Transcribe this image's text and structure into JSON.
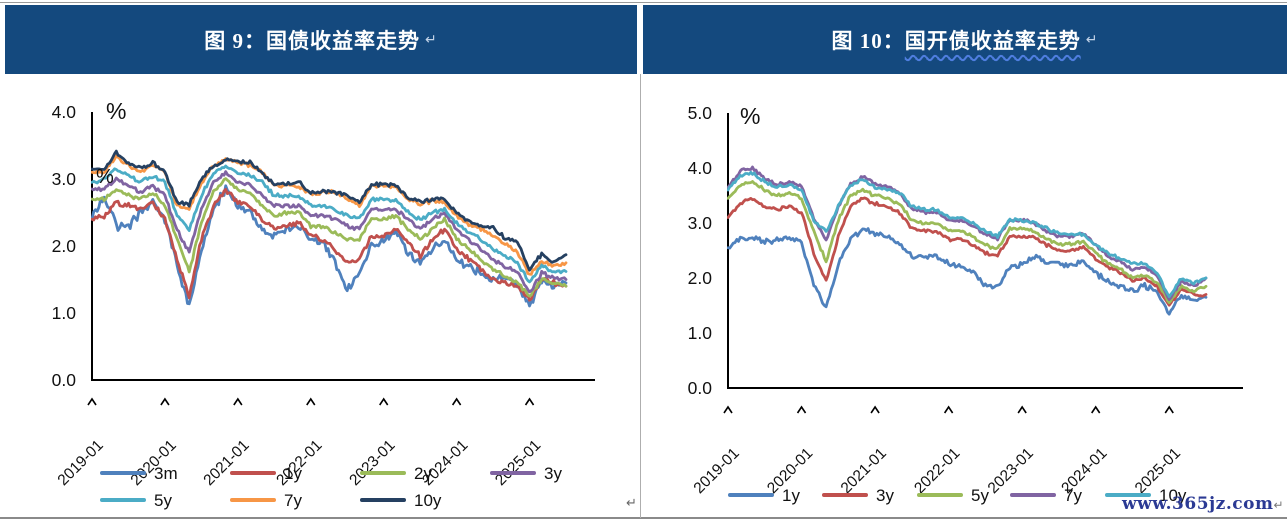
{
  "page": {
    "watermark": "www.365jz.com",
    "paragraph_mark": "↵"
  },
  "panels": [
    {
      "title_prefix": "图 9：",
      "title_main": "国债收益率走势",
      "percent_top": "%",
      "percent_inner": "%",
      "y_ticks": [
        "4.0",
        "3.0",
        "2.0",
        "1.0",
        "0.0"
      ],
      "x_ticks": [
        "2019-01",
        "2020-01",
        "2021-01",
        "2022-01",
        "2023-01",
        "2024-01",
        "2025-01"
      ]
    },
    {
      "title_prefix": "图 10：",
      "title_main": "国开债收益率走势",
      "percent_top": "%",
      "y_ticks": [
        "5.0",
        "4.0",
        "3.0",
        "2.0",
        "1.0",
        "0.0"
      ],
      "x_ticks": [
        "2019-01",
        "2020-01",
        "2021-01",
        "2022-01",
        "2023-01",
        "2024-01",
        "2025-01"
      ]
    }
  ],
  "chart_data": [
    {
      "type": "line",
      "title": "国债收益率走势",
      "ylabel": "%",
      "ylim": [
        0.0,
        4.0
      ],
      "x_start": "2019-01",
      "x_step_months": 2,
      "x_end": "2025-07",
      "x_tick_labels": [
        "2019-01",
        "2020-01",
        "2021-01",
        "2022-01",
        "2023-01",
        "2024-01",
        "2025-01"
      ],
      "legend_position": "bottom",
      "grid": false,
      "series": [
        {
          "name": "3m",
          "color": "#4F81BD",
          "values": [
            2.4,
            2.75,
            2.3,
            2.3,
            2.5,
            2.65,
            2.4,
            1.7,
            1.1,
            1.95,
            2.55,
            2.85,
            2.6,
            2.5,
            2.25,
            2.15,
            2.25,
            2.3,
            2.1,
            2.05,
            1.75,
            1.35,
            1.6,
            2.0,
            2.1,
            2.2,
            1.9,
            1.75,
            1.95,
            2.1,
            1.8,
            1.7,
            1.6,
            1.5,
            1.55,
            1.45,
            1.1,
            1.5,
            1.4,
            1.45
          ]
        },
        {
          "name": "1y",
          "color": "#C0504D",
          "values": [
            2.4,
            2.45,
            2.65,
            2.6,
            2.55,
            2.65,
            2.4,
            1.8,
            1.25,
            2.1,
            2.6,
            2.85,
            2.65,
            2.6,
            2.4,
            2.25,
            2.3,
            2.35,
            2.15,
            2.1,
            1.95,
            1.75,
            1.8,
            2.15,
            2.15,
            2.25,
            2.05,
            1.85,
            2.1,
            2.25,
            1.95,
            1.8,
            1.65,
            1.5,
            1.45,
            1.4,
            1.2,
            1.5,
            1.45,
            1.4
          ]
        },
        {
          "name": "2y",
          "color": "#9BBB59",
          "values": [
            2.7,
            2.7,
            2.85,
            2.75,
            2.7,
            2.8,
            2.6,
            2.1,
            1.6,
            2.35,
            2.8,
            3.0,
            2.85,
            2.8,
            2.6,
            2.45,
            2.5,
            2.5,
            2.3,
            2.3,
            2.2,
            2.1,
            2.1,
            2.4,
            2.4,
            2.45,
            2.25,
            2.1,
            2.25,
            2.4,
            2.1,
            1.95,
            1.8,
            1.65,
            1.55,
            1.45,
            1.25,
            1.5,
            1.45,
            1.4
          ]
        },
        {
          "name": "3y",
          "color": "#8064A2",
          "values": [
            2.85,
            2.85,
            3.0,
            2.9,
            2.8,
            2.9,
            2.75,
            2.25,
            1.9,
            2.55,
            2.95,
            3.1,
            2.95,
            2.9,
            2.75,
            2.6,
            2.6,
            2.6,
            2.45,
            2.45,
            2.4,
            2.3,
            2.25,
            2.55,
            2.55,
            2.55,
            2.4,
            2.25,
            2.4,
            2.5,
            2.25,
            2.1,
            1.95,
            1.8,
            1.7,
            1.6,
            1.3,
            1.6,
            1.52,
            1.5
          ]
        },
        {
          "name": "5y",
          "color": "#4BACC6",
          "values": [
            2.95,
            3.0,
            3.15,
            3.05,
            2.95,
            3.05,
            2.95,
            2.45,
            2.25,
            2.75,
            3.1,
            3.2,
            3.1,
            3.05,
            2.95,
            2.75,
            2.75,
            2.75,
            2.6,
            2.6,
            2.55,
            2.45,
            2.4,
            2.7,
            2.7,
            2.68,
            2.5,
            2.4,
            2.5,
            2.55,
            2.35,
            2.2,
            2.1,
            1.95,
            1.85,
            1.75,
            1.45,
            1.7,
            1.62,
            1.62
          ]
        },
        {
          "name": "7y",
          "color": "#F79646",
          "values": [
            3.1,
            3.1,
            3.35,
            3.2,
            3.1,
            3.2,
            3.1,
            2.6,
            2.55,
            2.95,
            3.2,
            3.3,
            3.25,
            3.2,
            3.1,
            2.9,
            2.9,
            2.9,
            2.78,
            2.8,
            2.8,
            2.7,
            2.6,
            2.9,
            2.9,
            2.88,
            2.7,
            2.62,
            2.67,
            2.65,
            2.45,
            2.32,
            2.26,
            2.16,
            2.02,
            1.92,
            1.55,
            1.78,
            1.7,
            1.75
          ]
        },
        {
          "name": "10y",
          "color": "#254061",
          "values": [
            3.15,
            3.15,
            3.4,
            3.22,
            3.15,
            3.25,
            3.1,
            2.65,
            2.62,
            3.0,
            3.2,
            3.3,
            3.25,
            3.25,
            3.1,
            2.92,
            2.92,
            2.95,
            2.8,
            2.82,
            2.8,
            2.75,
            2.65,
            2.92,
            2.92,
            2.9,
            2.72,
            2.66,
            2.7,
            2.7,
            2.5,
            2.36,
            2.3,
            2.26,
            2.12,
            2.05,
            1.65,
            1.88,
            1.75,
            1.87
          ]
        }
      ]
    },
    {
      "type": "line",
      "title": "国开债收益率走势",
      "ylabel": "%",
      "ylim": [
        0.0,
        5.0
      ],
      "x_start": "2019-01",
      "x_step_months": 2,
      "x_end": "2025-07",
      "x_tick_labels": [
        "2019-01",
        "2020-01",
        "2021-01",
        "2022-01",
        "2023-01",
        "2024-01",
        "2025-01"
      ],
      "legend_position": "bottom",
      "grid": false,
      "series": [
        {
          "name": "1y",
          "color": "#4F81BD",
          "values": [
            2.55,
            2.7,
            2.75,
            2.65,
            2.7,
            2.75,
            2.65,
            1.9,
            1.45,
            2.25,
            2.7,
            2.9,
            2.8,
            2.75,
            2.62,
            2.4,
            2.38,
            2.42,
            2.25,
            2.22,
            2.1,
            1.85,
            1.85,
            2.2,
            2.25,
            2.4,
            2.3,
            2.25,
            2.22,
            2.3,
            2.1,
            1.92,
            1.85,
            1.75,
            1.85,
            1.75,
            1.35,
            1.7,
            1.6,
            1.65
          ]
        },
        {
          "name": "3y",
          "color": "#C0504D",
          "values": [
            3.1,
            3.35,
            3.45,
            3.3,
            3.25,
            3.3,
            3.2,
            2.45,
            1.95,
            2.75,
            3.3,
            3.45,
            3.35,
            3.3,
            3.18,
            2.9,
            2.86,
            2.86,
            2.7,
            2.7,
            2.6,
            2.45,
            2.4,
            2.75,
            2.75,
            2.75,
            2.6,
            2.5,
            2.5,
            2.55,
            2.35,
            2.2,
            2.1,
            1.95,
            2.0,
            1.85,
            1.5,
            1.8,
            1.7,
            1.7
          ]
        },
        {
          "name": "5y",
          "color": "#9BBB59",
          "values": [
            3.45,
            3.7,
            3.75,
            3.6,
            3.5,
            3.55,
            3.45,
            2.85,
            2.3,
            3.05,
            3.5,
            3.6,
            3.5,
            3.45,
            3.35,
            3.05,
            3.0,
            3.0,
            2.85,
            2.85,
            2.75,
            2.6,
            2.52,
            2.9,
            2.9,
            2.85,
            2.7,
            2.62,
            2.62,
            2.65,
            2.45,
            2.26,
            2.16,
            2.0,
            2.06,
            1.92,
            1.55,
            1.85,
            1.76,
            1.85
          ]
        },
        {
          "name": "7y",
          "color": "#8064A2",
          "values": [
            3.65,
            3.95,
            4.0,
            3.8,
            3.7,
            3.75,
            3.65,
            3.1,
            2.7,
            3.3,
            3.7,
            3.85,
            3.7,
            3.65,
            3.55,
            3.25,
            3.2,
            3.2,
            3.05,
            3.05,
            2.95,
            2.8,
            2.72,
            3.05,
            3.05,
            3.0,
            2.85,
            2.76,
            2.76,
            2.8,
            2.6,
            2.4,
            2.3,
            2.15,
            2.2,
            2.05,
            1.6,
            1.95,
            1.85,
            2.0
          ]
        },
        {
          "name": "10y",
          "color": "#4BACC6",
          "values": [
            3.6,
            3.85,
            3.9,
            3.75,
            3.65,
            3.7,
            3.6,
            3.05,
            2.85,
            3.3,
            3.7,
            3.8,
            3.65,
            3.6,
            3.55,
            3.3,
            3.25,
            3.25,
            3.1,
            3.1,
            3.0,
            2.85,
            2.76,
            3.05,
            3.05,
            3.0,
            2.9,
            2.8,
            2.8,
            2.8,
            2.6,
            2.45,
            2.36,
            2.26,
            2.26,
            2.1,
            1.65,
            2.0,
            1.9,
            2.0
          ]
        }
      ]
    }
  ]
}
